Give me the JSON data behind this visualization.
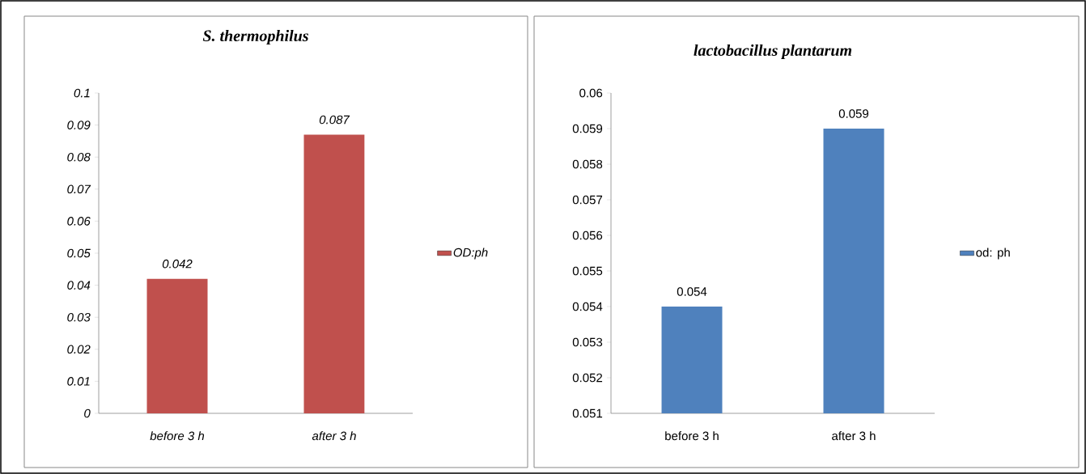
{
  "chart_data": [
    {
      "type": "bar",
      "title": "S. thermophilus",
      "categories": [
        "before 3 h",
        "after 3 h"
      ],
      "series": [
        {
          "name": "OD:ph",
          "color": "#c0504d",
          "values": [
            0.042,
            0.087
          ]
        }
      ],
      "ylim": [
        0,
        0.1
      ],
      "yticks": [
        0,
        0.01,
        0.02,
        0.03,
        0.04,
        0.05,
        0.06,
        0.07,
        0.08,
        0.09,
        0.1
      ],
      "data_labels": true,
      "legend": "right"
    },
    {
      "type": "bar",
      "title": "lactobacillus plantarum",
      "categories": [
        "before 3 h",
        "after 3 h"
      ],
      "series": [
        {
          "name": "od: ph",
          "color": "#4f81bd",
          "values": [
            0.054,
            0.059
          ]
        }
      ],
      "ylim": [
        0.051,
        0.06
      ],
      "yticks": [
        0.051,
        0.052,
        0.053,
        0.054,
        0.055,
        0.056,
        0.057,
        0.058,
        0.059,
        0.06
      ],
      "data_labels": true,
      "legend": "right"
    }
  ]
}
